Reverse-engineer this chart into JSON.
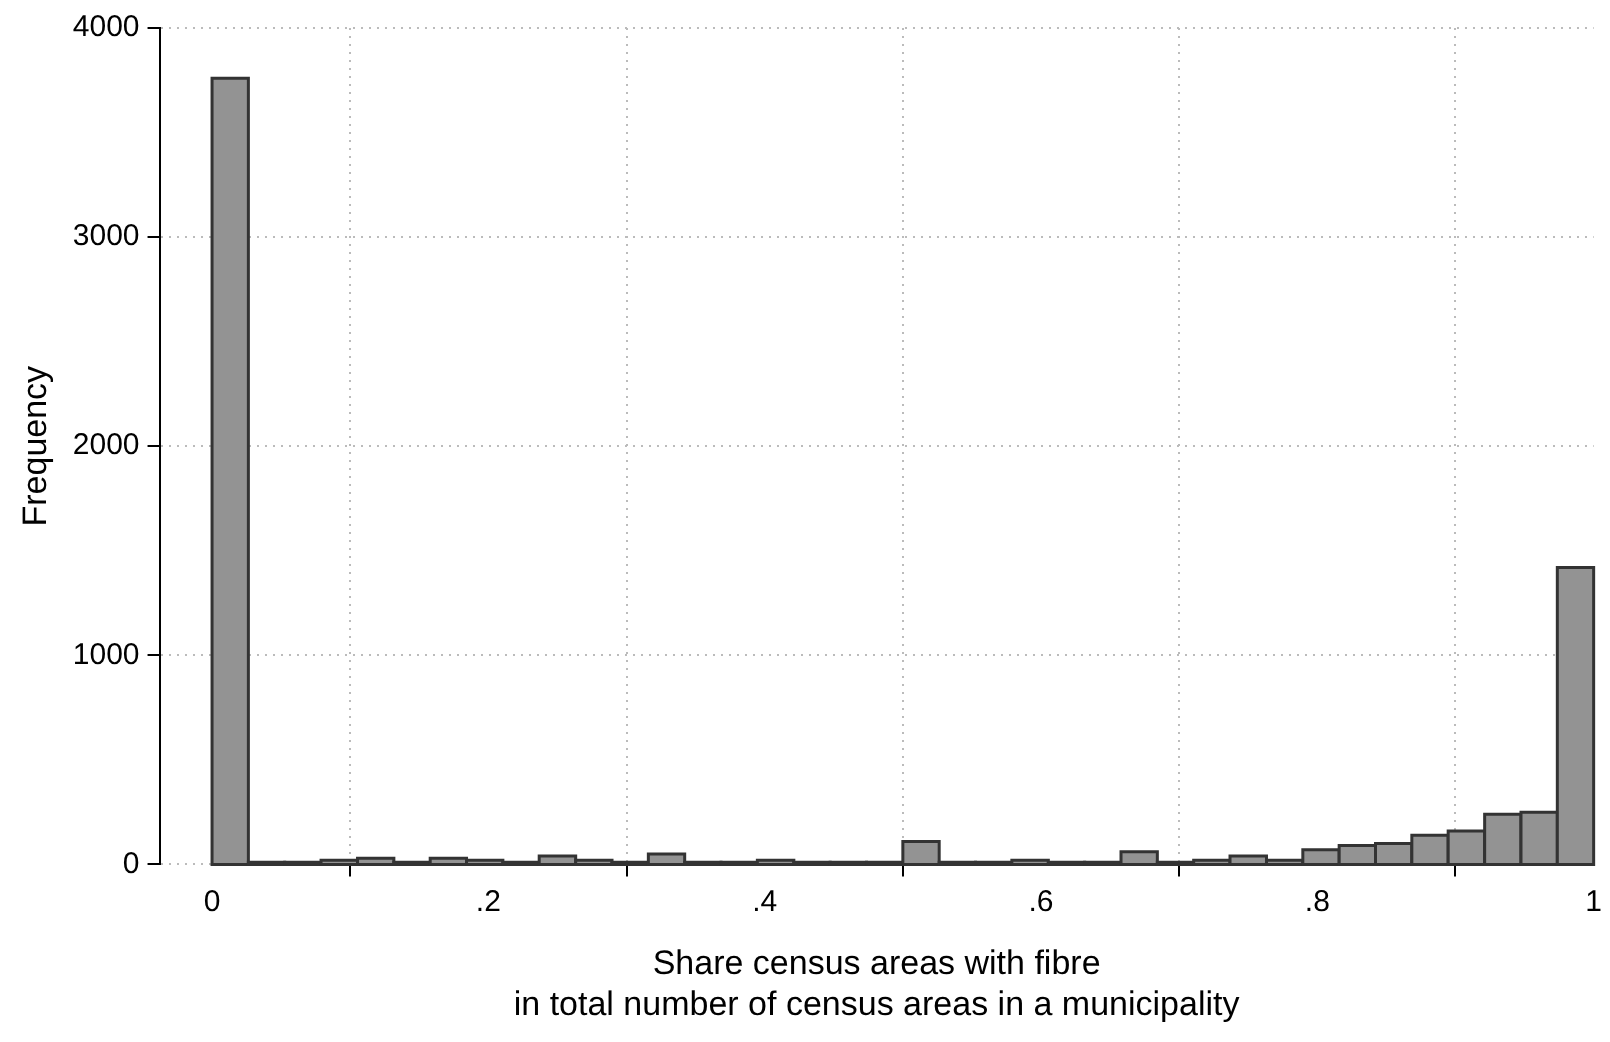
{
  "chart_data": {
    "type": "histogram",
    "xlabel": "Share census areas with fibre\nin total number of census areas in a municipality",
    "ylabel": "Frequency",
    "bins": [
      0,
      0.0263,
      0.0526,
      0.0789,
      0.1053,
      0.1316,
      0.1579,
      0.1842,
      0.2105,
      0.2368,
      0.2632,
      0.2895,
      0.3158,
      0.3421,
      0.3684,
      0.3947,
      0.4211,
      0.4474,
      0.4737,
      0.5,
      0.5263,
      0.5526,
      0.5789,
      0.6053,
      0.6316,
      0.6579,
      0.6842,
      0.7105,
      0.7368,
      0.7632,
      0.7895,
      0.8158,
      0.8421,
      0.8684,
      0.8947,
      0.9211,
      0.9474,
      0.9737,
      1
    ],
    "values": [
      3760,
      10,
      10,
      20,
      30,
      10,
      30,
      20,
      10,
      40,
      20,
      10,
      50,
      10,
      10,
      20,
      10,
      10,
      10,
      110,
      10,
      10,
      20,
      10,
      10,
      60,
      10,
      20,
      40,
      20,
      70,
      90,
      100,
      140,
      160,
      240,
      250,
      1420
    ],
    "color": "#939393",
    "xlim": [
      -0.038,
      1.0
    ],
    "xticks": [
      0,
      {
        "value": 0.2,
        "label": ".2"
      },
      {
        "value": 0.4,
        "label": ".4"
      },
      {
        "value": 0.6,
        "label": ".6"
      },
      {
        "value": 0.8,
        "label": ".8"
      },
      1
    ],
    "ylim": [
      0,
      4000
    ],
    "yticks": [
      0,
      1000,
      2000,
      3000,
      4000
    ],
    "grid": true,
    "legend": false
  }
}
